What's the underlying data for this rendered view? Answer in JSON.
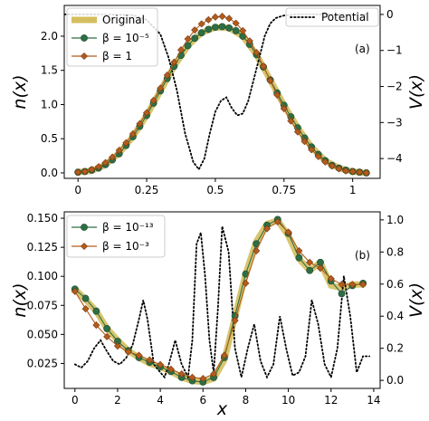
{
  "chart_data": [
    {
      "type": "line",
      "panel_label": "(a)",
      "xlim": [
        -0.05,
        1.1
      ],
      "ylim": [
        -0.08,
        2.45
      ],
      "y2lim": [
        -4.55,
        0.25
      ],
      "xticks": [
        "0",
        "0.25",
        "0.5",
        "0.75",
        "1"
      ],
      "xtick_values": [
        0,
        0.25,
        0.5,
        0.75,
        1
      ],
      "yticks": [
        "0.0",
        "0.5",
        "1.0",
        "1.5",
        "2.0"
      ],
      "ytick_values": [
        0,
        0.5,
        1,
        1.5,
        2
      ],
      "y2ticks": [
        "0",
        "−1",
        "−2",
        "−3",
        "−4"
      ],
      "y2tick_values": [
        0,
        -1,
        -2,
        -3,
        -4
      ],
      "ylabel": "n(x)",
      "y2label": "V(x)",
      "legend": [
        "Original",
        "β = 10⁻⁵",
        "β = 1"
      ],
      "legend2": [
        "Potential"
      ],
      "series": [
        {
          "name": "Original",
          "style": "thick",
          "color": "#d4bf5f",
          "axis": "left",
          "x": [
            0,
            0.05,
            0.1,
            0.15,
            0.2,
            0.25,
            0.3,
            0.35,
            0.4,
            0.45,
            0.5,
            0.55,
            0.6,
            0.65,
            0.7,
            0.75,
            0.8,
            0.85,
            0.9,
            0.95,
            1.0,
            1.05
          ],
          "y": [
            0.01,
            0.03,
            0.12,
            0.29,
            0.53,
            0.84,
            1.2,
            1.56,
            1.86,
            2.05,
            2.13,
            2.12,
            2.0,
            1.73,
            1.36,
            0.99,
            0.66,
            0.38,
            0.18,
            0.07,
            0.02,
            0.0
          ]
        },
        {
          "name": "β = 10⁻⁵",
          "style": "circle",
          "color": "#2e6e45",
          "axis": "left",
          "x": [
            0,
            0.025,
            0.05,
            0.075,
            0.1,
            0.125,
            0.15,
            0.175,
            0.2,
            0.225,
            0.25,
            0.275,
            0.3,
            0.325,
            0.35,
            0.375,
            0.4,
            0.425,
            0.45,
            0.475,
            0.5,
            0.525,
            0.55,
            0.575,
            0.6,
            0.625,
            0.65,
            0.675,
            0.7,
            0.725,
            0.75,
            0.775,
            0.8,
            0.825,
            0.85,
            0.875,
            0.9,
            0.925,
            0.95,
            0.975,
            1.0,
            1.025,
            1.05
          ],
          "y": [
            0.01,
            0.02,
            0.04,
            0.07,
            0.12,
            0.19,
            0.28,
            0.4,
            0.53,
            0.68,
            0.84,
            1.02,
            1.2,
            1.38,
            1.56,
            1.72,
            1.86,
            1.97,
            2.05,
            2.1,
            2.13,
            2.14,
            2.12,
            2.08,
            2.0,
            1.88,
            1.73,
            1.55,
            1.36,
            1.17,
            0.99,
            0.82,
            0.66,
            0.51,
            0.38,
            0.27,
            0.18,
            0.11,
            0.07,
            0.04,
            0.02,
            0.01,
            0.0
          ]
        },
        {
          "name": "β = 1",
          "style": "diamond",
          "color": "#b35c1e",
          "axis": "left",
          "x": [
            0,
            0.025,
            0.05,
            0.075,
            0.1,
            0.125,
            0.15,
            0.175,
            0.2,
            0.225,
            0.25,
            0.275,
            0.3,
            0.325,
            0.35,
            0.375,
            0.4,
            0.425,
            0.45,
            0.475,
            0.5,
            0.525,
            0.55,
            0.575,
            0.6,
            0.625,
            0.65,
            0.675,
            0.7,
            0.725,
            0.75,
            0.775,
            0.8,
            0.825,
            0.85,
            0.875,
            0.9,
            0.925,
            0.95,
            0.975,
            1.0,
            1.025,
            1.05
          ],
          "y": [
            0.01,
            0.02,
            0.05,
            0.09,
            0.15,
            0.23,
            0.33,
            0.44,
            0.57,
            0.72,
            0.88,
            1.06,
            1.24,
            1.43,
            1.62,
            1.8,
            1.96,
            2.09,
            2.18,
            2.24,
            2.28,
            2.29,
            2.26,
            2.19,
            2.08,
            1.93,
            1.76,
            1.56,
            1.35,
            1.14,
            0.94,
            0.76,
            0.6,
            0.46,
            0.34,
            0.24,
            0.16,
            0.1,
            0.06,
            0.03,
            0.02,
            0.01,
            0.0
          ]
        },
        {
          "name": "Potential",
          "style": "dotted",
          "color": "#000000",
          "axis": "right",
          "x": [
            -0.05,
            0.0,
            0.1,
            0.2,
            0.25,
            0.3,
            0.33,
            0.36,
            0.39,
            0.42,
            0.44,
            0.46,
            0.48,
            0.5,
            0.52,
            0.54,
            0.56,
            0.58,
            0.6,
            0.62,
            0.64,
            0.66,
            0.68,
            0.7,
            0.72,
            0.75,
            0.8,
            0.9,
            1.0,
            1.05
          ],
          "y": [
            0.0,
            0.0,
            0.0,
            -0.02,
            -0.15,
            -0.55,
            -1.2,
            -2.1,
            -3.3,
            -4.1,
            -4.3,
            -4.0,
            -3.3,
            -2.7,
            -2.4,
            -2.3,
            -2.6,
            -2.8,
            -2.75,
            -2.4,
            -1.8,
            -1.2,
            -0.6,
            -0.25,
            -0.1,
            -0.03,
            0.0,
            0.0,
            0.0,
            0.0
          ]
        }
      ]
    },
    {
      "type": "line",
      "panel_label": "(b)",
      "xlim": [
        -0.5,
        14.3
      ],
      "ylim": [
        0.0035,
        0.1555
      ],
      "y2lim": [
        -0.05,
        1.05
      ],
      "xticks": [
        "0",
        "2",
        "4",
        "6",
        "8",
        "10",
        "12",
        "14"
      ],
      "xtick_values": [
        0,
        2,
        4,
        6,
        8,
        10,
        12,
        14
      ],
      "yticks": [
        "0.025",
        "0.050",
        "0.075",
        "0.100",
        "0.125",
        "0.150"
      ],
      "ytick_values": [
        0.025,
        0.05,
        0.075,
        0.1,
        0.125,
        0.15
      ],
      "y2ticks": [
        "0.0",
        "0.2",
        "0.4",
        "0.6",
        "0.8",
        "1.0"
      ],
      "y2tick_values": [
        0,
        0.2,
        0.4,
        0.6,
        0.8,
        1.0
      ],
      "xlabel": "x",
      "ylabel": "n(x)",
      "y2label": "V(x)",
      "legend": [
        "β = 10⁻¹³",
        "β = 10⁻³"
      ],
      "series": [
        {
          "name": "Original",
          "style": "thick",
          "color": "#d4bf5f",
          "axis": "left",
          "x": [
            0,
            0.5,
            1.0,
            1.5,
            2.0,
            2.5,
            3.0,
            3.5,
            4.0,
            4.5,
            5.0,
            5.5,
            6.0,
            6.5,
            7.0,
            7.5,
            8.0,
            8.5,
            9.0,
            9.5,
            10.0,
            10.5,
            11.0,
            11.5,
            12.0,
            12.5,
            13.0,
            13.5
          ],
          "y": [
            0.089,
            0.08,
            0.07,
            0.055,
            0.045,
            0.036,
            0.03,
            0.025,
            0.022,
            0.018,
            0.013,
            0.01,
            0.009,
            0.012,
            0.028,
            0.065,
            0.102,
            0.13,
            0.145,
            0.148,
            0.135,
            0.115,
            0.105,
            0.112,
            0.092,
            0.09,
            0.093,
            0.093
          ]
        },
        {
          "name": "β = 10⁻¹³",
          "style": "circle",
          "color": "#2e6e45",
          "axis": "left",
          "x": [
            0,
            0.5,
            1.0,
            1.5,
            2.0,
            2.5,
            3.0,
            3.5,
            4.0,
            4.5,
            5.0,
            5.5,
            6.0,
            6.5,
            7.0,
            7.5,
            8.0,
            8.5,
            9.0,
            9.5,
            10.0,
            10.5,
            11.0,
            11.5,
            12.0,
            12.5,
            13.0,
            13.5
          ],
          "y": [
            0.089,
            0.081,
            0.07,
            0.055,
            0.044,
            0.036,
            0.03,
            0.026,
            0.022,
            0.018,
            0.013,
            0.01,
            0.009,
            0.013,
            0.03,
            0.066,
            0.102,
            0.128,
            0.144,
            0.149,
            0.137,
            0.116,
            0.105,
            0.112,
            0.096,
            0.085,
            0.092,
            0.094
          ]
        },
        {
          "name": "β = 10⁻³",
          "style": "diamond",
          "color": "#b35c1e",
          "axis": "left",
          "x": [
            0,
            0.5,
            1.0,
            1.5,
            2.0,
            2.5,
            3.0,
            3.5,
            4.0,
            4.5,
            5.0,
            5.5,
            6.0,
            6.5,
            7.0,
            7.5,
            8.0,
            8.5,
            9.0,
            9.5,
            10.0,
            10.5,
            11.0,
            11.5,
            12.0,
            12.5,
            13.0,
            13.5
          ],
          "y": [
            0.087,
            0.072,
            0.058,
            0.048,
            0.04,
            0.035,
            0.032,
            0.028,
            0.024,
            0.02,
            0.016,
            0.013,
            0.012,
            0.016,
            0.032,
            0.062,
            0.094,
            0.122,
            0.141,
            0.147,
            0.138,
            0.122,
            0.112,
            0.107,
            0.098,
            0.093,
            0.093,
            0.093
          ]
        },
        {
          "name": "Potential",
          "style": "dotted",
          "color": "#000000",
          "axis": "right",
          "x": [
            0,
            0.3,
            0.6,
            0.9,
            1.2,
            1.5,
            1.8,
            2.1,
            2.4,
            2.7,
            3.0,
            3.2,
            3.4,
            3.7,
            4.0,
            4.2,
            4.4,
            4.7,
            5.0,
            5.3,
            5.5,
            5.7,
            5.9,
            6.1,
            6.3,
            6.5,
            6.7,
            6.9,
            7.2,
            7.5,
            7.8,
            8.1,
            8.4,
            8.7,
            9.0,
            9.3,
            9.6,
            9.9,
            10.2,
            10.5,
            10.8,
            11.1,
            11.4,
            11.7,
            12.0,
            12.3,
            12.6,
            12.9,
            13.2,
            13.5,
            13.8
          ],
          "y": [
            0.1,
            0.08,
            0.12,
            0.2,
            0.25,
            0.18,
            0.12,
            0.1,
            0.14,
            0.22,
            0.38,
            0.5,
            0.38,
            0.1,
            0.05,
            0.02,
            0.1,
            0.25,
            0.1,
            0.02,
            0.25,
            0.85,
            0.92,
            0.65,
            0.25,
            0.05,
            0.45,
            0.96,
            0.8,
            0.2,
            0.02,
            0.2,
            0.35,
            0.12,
            0.02,
            0.1,
            0.4,
            0.2,
            0.03,
            0.05,
            0.15,
            0.5,
            0.35,
            0.1,
            0.02,
            0.2,
            0.65,
            0.4,
            0.05,
            0.15,
            0.15
          ]
        }
      ]
    }
  ]
}
